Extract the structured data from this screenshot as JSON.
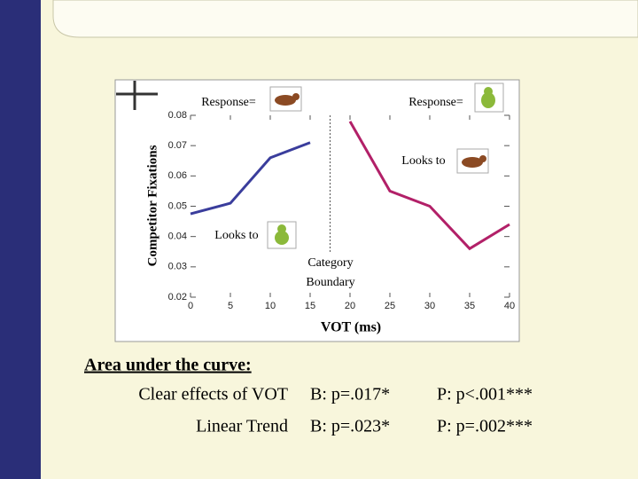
{
  "chart_data": {
    "type": "line",
    "y_label": "Competitor Fixations",
    "x_label": "VOT (ms)",
    "x": [
      0,
      5,
      10,
      15,
      20,
      25,
      30,
      35,
      40
    ],
    "series": [
      {
        "name": "Bear responses",
        "color": "#3a3d9c",
        "values": [
          0.0475,
          0.051,
          0.066,
          0.071,
          null,
          null,
          null,
          null,
          null
        ]
      },
      {
        "name": "Pear responses",
        "color": "#b22068",
        "values": [
          null,
          null,
          null,
          null,
          0.078,
          0.055,
          0.05,
          0.036,
          0.044
        ]
      }
    ],
    "xlim": [
      0,
      40
    ],
    "xticks": [
      0,
      5,
      10,
      15,
      20,
      25,
      30,
      35,
      40
    ],
    "ylim": [
      0.02,
      0.08
    ],
    "yticks": [
      0.02,
      0.03,
      0.04,
      0.05,
      0.06,
      0.07,
      0.08
    ],
    "boundary": 17.5,
    "response_labels": [
      "Response=",
      "Response="
    ],
    "looks_to_labels": [
      "Looks to",
      "Looks to"
    ],
    "boundary_label": [
      "Category",
      "Boundary"
    ]
  },
  "summary": {
    "heading": "Area under the curve:",
    "rows": [
      [
        "Clear effects of VOT",
        "B: p=.017*",
        "P: p<.001***"
      ],
      [
        "Linear Trend",
        "B: p=.023*",
        "P: p=.002***"
      ]
    ]
  }
}
